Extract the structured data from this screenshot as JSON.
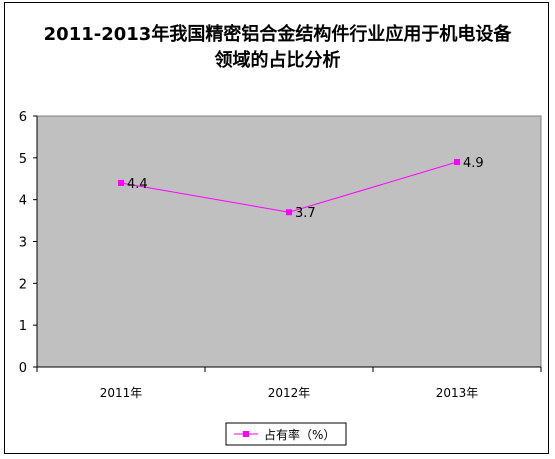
{
  "chart_data": {
    "type": "line",
    "title_line1": "2011-2013年我国精密铝合金结构件行业应用于机电设备",
    "title_line2": "领域的占比分析",
    "categories": [
      "2011年",
      "2012年",
      "2013年"
    ],
    "series": [
      {
        "name": "占有率（%）",
        "values": [
          4.4,
          3.7,
          4.9
        ],
        "labels": [
          "4.4",
          "3.7",
          "4.9"
        ],
        "color": "#ff00ff"
      }
    ],
    "ylim": [
      0,
      6
    ],
    "yticks": [
      "0",
      "1",
      "2",
      "3",
      "4",
      "5",
      "6"
    ],
    "plot_background": "#c0c0c0",
    "grid": false,
    "legend_position": "bottom"
  }
}
